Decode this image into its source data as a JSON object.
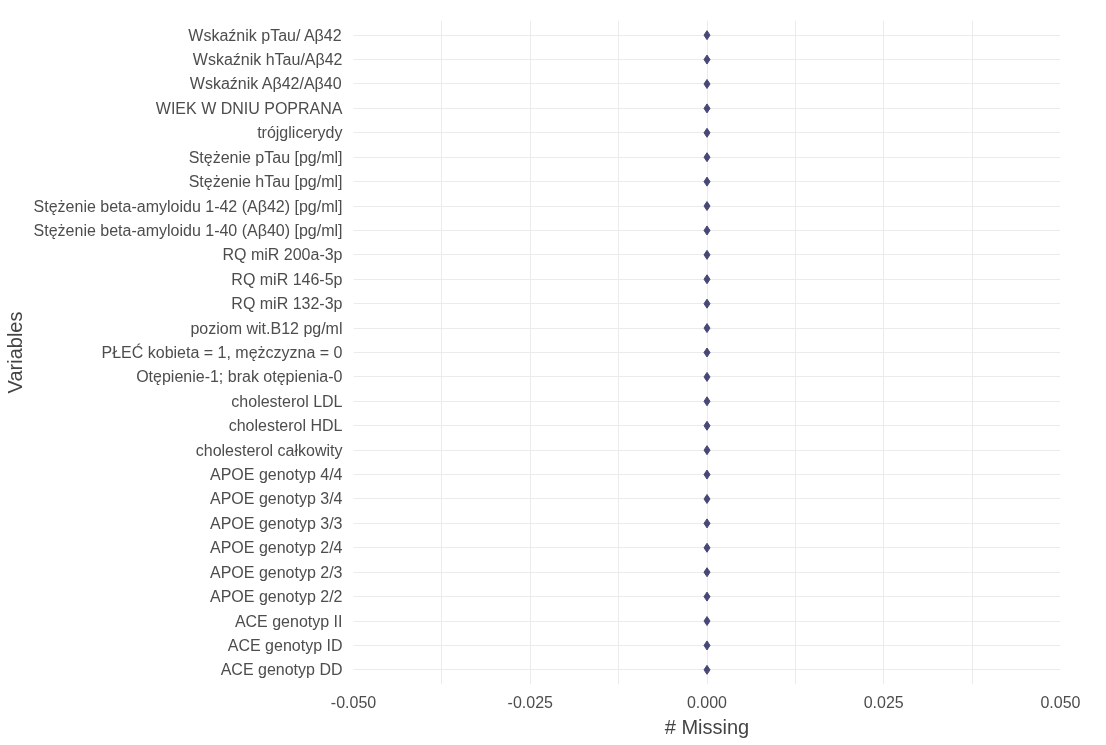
{
  "chart_data": {
    "type": "lollipop",
    "orientation": "horizontal",
    "xlabel": "# Missing",
    "ylabel": "Variables",
    "categories": [
      "Wskaźnik pTau/ Aβ42",
      "Wskaźnik hTau/Aβ42",
      "Wskaźnik Aβ42/Aβ40",
      "WIEK W DNIU POPRANA",
      "trójglicerydy",
      "Stężenie pTau [pg/ml]",
      "Stężenie hTau [pg/ml]",
      "Stężenie beta-amyloidu 1-42 (Aβ42) [pg/ml]",
      "Stężenie beta-amyloidu 1-40 (Aβ40) [pg/ml]",
      "RQ miR 200a-3p",
      "RQ miR 146-5p",
      "RQ miR 132-3p",
      "poziom wit.B12 pg/ml",
      "PŁEĆ kobieta = 1, mężczyzna = 0",
      "Otępienie-1; brak otępienia-0",
      "cholesterol LDL",
      "cholesterol HDL",
      "cholesterol całkowity",
      "APOE genotyp 4/4",
      "APOE genotyp 3/4",
      "APOE genotyp 3/3",
      "APOE genotyp 2/4",
      "APOE genotyp 2/3",
      "APOE genotyp 2/2",
      "ACE genotyp II",
      "ACE genotyp ID",
      "ACE genotyp DD"
    ],
    "values": [
      0,
      0,
      0,
      0,
      0,
      0,
      0,
      0,
      0,
      0,
      0,
      0,
      0,
      0,
      0,
      0,
      0,
      0,
      0,
      0,
      0,
      0,
      0,
      0,
      0,
      0,
      0
    ],
    "color": "#484878",
    "marker": "diamond",
    "grid": true,
    "xlim": [
      -0.05,
      0.05
    ],
    "xticks": [
      {
        "value": -0.05,
        "label": "-0.050"
      },
      {
        "value": -0.025,
        "label": "-0.025"
      },
      {
        "value": 0,
        "label": "0.000"
      },
      {
        "value": 0.025,
        "label": "0.025"
      },
      {
        "value": 0.05,
        "label": "0.050"
      }
    ]
  }
}
